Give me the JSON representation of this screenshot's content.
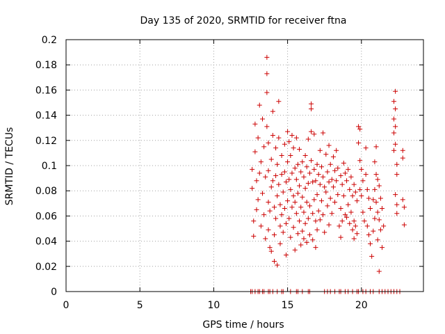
{
  "chart_data": {
    "type": "scatter",
    "title": "Day 135 of 2020, SRMTID for receiver ftna",
    "xlabel": "GPS time / hours",
    "ylabel": "SRMTID / TECUs",
    "xlim": [
      0,
      24.2
    ],
    "ylim": [
      0,
      0.2
    ],
    "x_ticks": [
      0,
      5,
      10,
      15,
      20
    ],
    "x_tick_labels": [
      "0",
      "5",
      "10",
      "15",
      "20"
    ],
    "y_ticks": [
      0,
      0.02,
      0.04,
      0.06,
      0.08,
      0.1,
      0.12,
      0.14,
      0.16,
      0.18,
      0.2
    ],
    "y_tick_labels": [
      "0",
      "0.02",
      "0.04",
      "0.06",
      "0.08",
      "0.1",
      "0.12",
      "0.14",
      "0.16",
      "0.18",
      "0.2"
    ],
    "grid": true,
    "marker": "plus",
    "series": [
      {
        "name": "SRMTID",
        "color": "#cc0000",
        "points": [
          [
            12.6,
            0.097
          ],
          [
            12.6,
            0.082
          ],
          [
            12.7,
            0.044
          ],
          [
            12.7,
            0.056
          ],
          [
            12.8,
            0.133
          ],
          [
            12.8,
            0.111
          ],
          [
            12.9,
            0.088
          ],
          [
            12.9,
            0.065
          ],
          [
            13.0,
            0.122
          ],
          [
            13.0,
            0.073
          ],
          [
            13.1,
            0.148
          ],
          [
            13.1,
            0.094
          ],
          [
            13.2,
            0.052
          ],
          [
            13.2,
            0.103
          ],
          [
            13.3,
            0.137
          ],
          [
            13.3,
            0.078
          ],
          [
            13.4,
            0.115
          ],
          [
            13.4,
            0.061
          ],
          [
            13.5,
            0.091
          ],
          [
            13.5,
            0.042
          ],
          [
            13.6,
            0.186
          ],
          [
            13.6,
            0.173
          ],
          [
            13.6,
            0.158
          ],
          [
            13.6,
            0.131
          ],
          [
            13.7,
            0.118
          ],
          [
            13.7,
            0.096
          ],
          [
            13.7,
            0.071
          ],
          [
            13.7,
            0.049
          ],
          [
            13.8,
            0.035
          ],
          [
            13.8,
            0.064
          ],
          [
            13.9,
            0.105
          ],
          [
            13.9,
            0.083
          ],
          [
            13.9,
            0.032
          ],
          [
            14.0,
            0.143
          ],
          [
            14.0,
            0.124
          ],
          [
            14.0,
            0.088
          ],
          [
            14.1,
            0.067
          ],
          [
            14.1,
            0.045
          ],
          [
            14.1,
            0.024
          ],
          [
            14.2,
            0.114
          ],
          [
            14.2,
            0.092
          ],
          [
            14.2,
            0.058
          ],
          [
            14.3,
            0.101
          ],
          [
            14.3,
            0.076
          ],
          [
            14.3,
            0.021
          ],
          [
            14.4,
            0.151
          ],
          [
            14.4,
            0.122
          ],
          [
            14.4,
            0.085
          ],
          [
            14.5,
            0.069
          ],
          [
            14.5,
            0.052
          ],
          [
            14.5,
            0.038
          ],
          [
            14.6,
            0.108
          ],
          [
            14.6,
            0.093
          ],
          [
            14.6,
            0.061
          ],
          [
            14.7,
            0.079
          ],
          [
            14.7,
            0.047
          ],
          [
            14.8,
            0.117
          ],
          [
            14.8,
            0.095
          ],
          [
            14.8,
            0.066
          ],
          [
            14.9,
            0.087
          ],
          [
            14.9,
            0.054
          ],
          [
            14.9,
            0.029
          ],
          [
            15.0,
            0.127
          ],
          [
            15.0,
            0.103
          ],
          [
            15.0,
            0.072
          ],
          [
            15.1,
            0.119
          ],
          [
            15.1,
            0.089
          ],
          [
            15.1,
            0.058
          ],
          [
            15.2,
            0.108
          ],
          [
            15.2,
            0.081
          ],
          [
            15.2,
            0.043
          ],
          [
            15.3,
            0.124
          ],
          [
            15.3,
            0.094
          ],
          [
            15.3,
            0.067
          ],
          [
            15.4,
            0.114
          ],
          [
            15.4,
            0.076
          ],
          [
            15.4,
            0.051
          ],
          [
            15.5,
            0.098
          ],
          [
            15.5,
            0.071
          ],
          [
            15.5,
            0.033
          ],
          [
            15.6,
            0.122
          ],
          [
            15.6,
            0.089
          ],
          [
            15.6,
            0.062
          ],
          [
            15.7,
            0.101
          ],
          [
            15.7,
            0.078
          ],
          [
            15.7,
            0.046
          ],
          [
            15.8,
            0.113
          ],
          [
            15.8,
            0.084
          ],
          [
            15.8,
            0.056
          ],
          [
            15.9,
            0.095
          ],
          [
            15.9,
            0.067
          ],
          [
            15.9,
            0.037
          ],
          [
            16.0,
            0.103
          ],
          [
            16.0,
            0.075
          ],
          [
            16.0,
            0.048
          ],
          [
            16.1,
            0.091
          ],
          [
            16.1,
            0.063
          ],
          [
            16.1,
            0.042
          ],
          [
            16.2,
            0.108
          ],
          [
            16.2,
            0.082
          ],
          [
            16.2,
            0.054
          ],
          [
            16.3,
            0.099
          ],
          [
            16.3,
            0.071
          ],
          [
            16.3,
            0.039
          ],
          [
            16.4,
            0.121
          ],
          [
            16.4,
            0.086
          ],
          [
            16.4,
            0.058
          ],
          [
            16.5,
            0.094
          ],
          [
            16.5,
            0.068
          ],
          [
            16.5,
            0.045
          ],
          [
            16.6,
            0.149
          ],
          [
            16.6,
            0.145
          ],
          [
            16.6,
            0.127
          ],
          [
            16.6,
            0.104
          ],
          [
            16.7,
            0.087
          ],
          [
            16.7,
            0.062
          ],
          [
            16.7,
            0.041
          ],
          [
            16.8,
            0.125
          ],
          [
            16.8,
            0.097
          ],
          [
            16.8,
            0.073
          ],
          [
            16.9,
            0.088
          ],
          [
            16.9,
            0.056
          ],
          [
            16.9,
            0.035
          ],
          [
            17.0,
            0.101
          ],
          [
            17.0,
            0.077
          ],
          [
            17.0,
            0.049
          ],
          [
            17.1,
            0.093
          ],
          [
            17.1,
            0.064
          ],
          [
            17.2,
            0.112
          ],
          [
            17.2,
            0.085
          ],
          [
            17.2,
            0.057
          ],
          [
            17.3,
            0.099
          ],
          [
            17.3,
            0.072
          ],
          [
            17.4,
            0.126
          ],
          [
            17.4,
            0.091
          ],
          [
            17.4,
            0.061
          ],
          [
            17.5,
            0.083
          ],
          [
            17.5,
            0.047
          ],
          [
            17.6,
            0.109
          ],
          [
            17.6,
            0.079
          ],
          [
            17.7,
            0.095
          ],
          [
            17.7,
            0.068
          ],
          [
            17.8,
            0.116
          ],
          [
            17.8,
            0.087
          ],
          [
            17.8,
            0.053
          ],
          [
            17.9,
            0.101
          ],
          [
            17.9,
            0.074
          ],
          [
            18.0,
            0.089
          ],
          [
            18.0,
            0.062
          ],
          [
            18.1,
            0.107
          ],
          [
            18.1,
            0.083
          ],
          [
            18.2,
            0.096
          ],
          [
            18.2,
            0.071
          ],
          [
            18.3,
            0.112
          ],
          [
            18.3,
            0.088
          ],
          [
            18.4,
            0.098
          ],
          [
            18.4,
            0.077
          ],
          [
            18.5,
            0.052
          ],
          [
            18.6,
            0.092
          ],
          [
            18.6,
            0.066
          ],
          [
            18.6,
            0.043
          ],
          [
            18.7,
            0.085
          ],
          [
            18.7,
            0.056
          ],
          [
            18.8,
            0.102
          ],
          [
            18.8,
            0.076
          ],
          [
            18.9,
            0.094
          ],
          [
            18.9,
            0.061
          ],
          [
            19.0,
            0.088
          ],
          [
            19.0,
            0.059
          ],
          [
            19.1,
            0.097
          ],
          [
            19.1,
            0.069
          ],
          [
            19.2,
            0.081
          ],
          [
            19.2,
            0.054
          ],
          [
            19.3,
            0.091
          ],
          [
            19.3,
            0.063
          ],
          [
            19.4,
            0.076
          ],
          [
            19.4,
            0.049
          ],
          [
            19.5,
            0.085
          ],
          [
            19.5,
            0.056
          ],
          [
            19.5,
            0.042
          ],
          [
            19.6,
            0.079
          ],
          [
            19.6,
            0.052
          ],
          [
            19.7,
            0.072
          ],
          [
            19.7,
            0.046
          ],
          [
            19.8,
            0.131
          ],
          [
            19.8,
            0.118
          ],
          [
            19.9,
            0.129
          ],
          [
            19.9,
            0.104
          ],
          [
            19.9,
            0.081
          ],
          [
            20.0,
            0.097
          ],
          [
            20.0,
            0.076
          ],
          [
            20.1,
            0.088
          ],
          [
            20.1,
            0.063
          ],
          [
            20.2,
            0.056
          ],
          [
            20.3,
            0.114
          ],
          [
            20.3,
            0.093
          ],
          [
            20.4,
            0.081
          ],
          [
            20.4,
            0.052
          ],
          [
            20.5,
            0.074
          ],
          [
            20.5,
            0.045
          ],
          [
            20.6,
            0.066
          ],
          [
            20.6,
            0.038
          ],
          [
            20.7,
            0.028
          ],
          [
            20.8,
            0.073
          ],
          [
            20.8,
            0.048
          ],
          [
            20.9,
            0.103
          ],
          [
            20.9,
            0.081
          ],
          [
            20.9,
            0.058
          ],
          [
            21.0,
            0.115
          ],
          [
            21.0,
            0.093
          ],
          [
            21.0,
            0.071
          ],
          [
            21.1,
            0.089
          ],
          [
            21.1,
            0.063
          ],
          [
            21.1,
            0.041
          ],
          [
            21.2,
            0.084
          ],
          [
            21.2,
            0.057
          ],
          [
            21.2,
            0.016
          ],
          [
            21.3,
            0.074
          ],
          [
            21.3,
            0.049
          ],
          [
            21.4,
            0.066
          ],
          [
            21.4,
            0.035
          ],
          [
            21.5,
            0.052
          ],
          [
            22.2,
            0.151
          ],
          [
            22.2,
            0.137
          ],
          [
            22.2,
            0.126
          ],
          [
            22.2,
            0.112
          ],
          [
            22.3,
            0.159
          ],
          [
            22.3,
            0.145
          ],
          [
            22.3,
            0.131
          ],
          [
            22.3,
            0.117
          ],
          [
            22.3,
            0.077
          ],
          [
            22.4,
            0.101
          ],
          [
            22.4,
            0.093
          ],
          [
            22.4,
            0.069
          ],
          [
            22.4,
            0.062
          ],
          [
            22.8,
            0.112
          ],
          [
            22.8,
            0.106
          ],
          [
            22.8,
            0.073
          ],
          [
            22.9,
            0.067
          ],
          [
            22.9,
            0.053
          ]
        ]
      }
    ],
    "zero_markers": {
      "name": "zero-baseline",
      "color": "#cc0000",
      "y": 0,
      "x": [
        12.5,
        12.6,
        12.8,
        13.0,
        13.1,
        13.3,
        13.4,
        13.7,
        13.8,
        14.0,
        14.3,
        14.6,
        14.7,
        15.2,
        15.6,
        15.7,
        16.0,
        16.4,
        16.5,
        17.5,
        17.7,
        17.9,
        18.2,
        18.5,
        18.6,
        18.9,
        19.1,
        19.4,
        19.7,
        19.8,
        20.1,
        20.3,
        20.6,
        20.8,
        21.2,
        21.4,
        21.6,
        21.8,
        22.0,
        22.2,
        22.4,
        22.6
      ]
    }
  }
}
